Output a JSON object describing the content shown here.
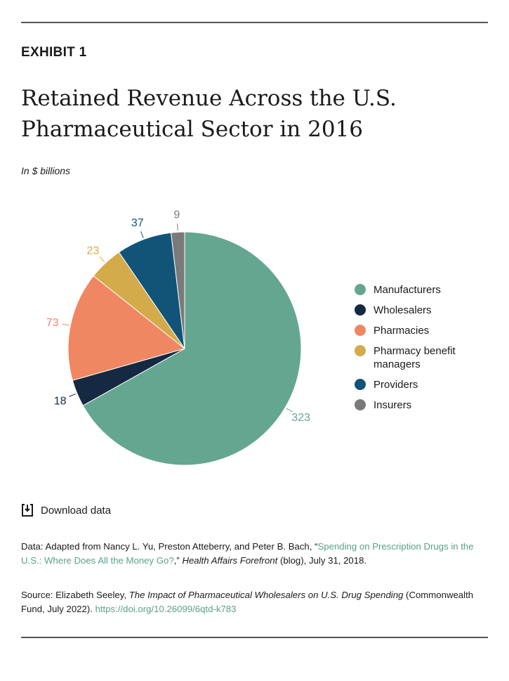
{
  "exhibit": "EXHIBIT 1",
  "title": "Retained Revenue Across the U.S. Pharmaceutical Sector in 2016",
  "subtitle": "In $ billions",
  "chart_data": {
    "type": "pie",
    "start": "top, clockwise",
    "categories": [
      "Manufacturers",
      "Wholesalers",
      "Pharmacies",
      "Pharmacy benefit managers",
      "Providers",
      "Insurers"
    ],
    "values": [
      323,
      18,
      73,
      23,
      37,
      9
    ],
    "colors": [
      "#65a691",
      "#152a42",
      "#f08763",
      "#d4ab4a",
      "#115478",
      "#7a7a7a"
    ],
    "legend": "right"
  },
  "download_label": "Download data",
  "data_note": {
    "prefix": "Data: Adapted from Nancy L. Yu, Preston Atteberry, and Peter B. Bach, “",
    "link": "Spending on Prescription Drugs in the U.S.: Where Does All the Money Go?",
    "mid": ",” ",
    "journal": "Health Affairs Forefront",
    "suffix": " (blog), July 31, 2018."
  },
  "source_note": {
    "prefix": "Source: Elizabeth Seeley, ",
    "book": "The Impact of Pharmaceutical Wholesalers on U.S. Drug Spending",
    "suffix": " (Commonwealth Fund, July 2022). ",
    "link": "https://doi.org/10.26099/6qtd-k783"
  }
}
